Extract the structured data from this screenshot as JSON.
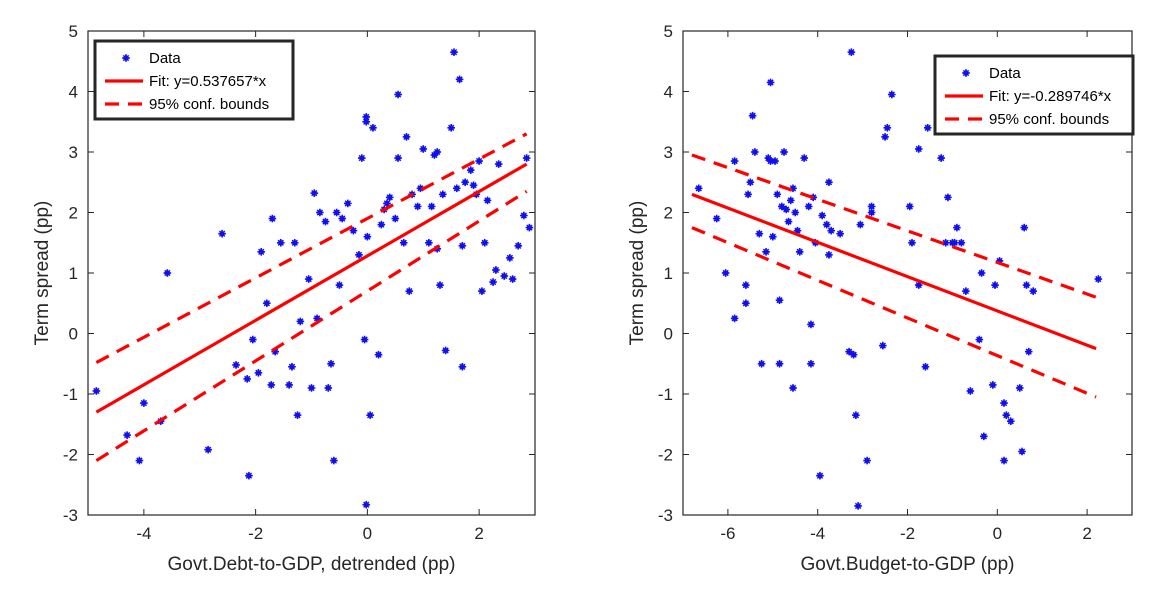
{
  "chart_data": [
    {
      "type": "scatter",
      "xlabel": "Govt.Debt-to-GDP, detrended (pp)",
      "ylabel": "Term spread (pp)",
      "xlim": [
        -5,
        3
      ],
      "ylim": [
        -3,
        5
      ],
      "xticks": [
        -4,
        -2,
        0,
        2
      ],
      "xtick_labels": [
        "-4",
        "-2",
        "0",
        "2"
      ],
      "yticks": [
        -3,
        -2,
        -1,
        0,
        1,
        2,
        3,
        4,
        5
      ],
      "ytick_labels": [
        "-3",
        "-2",
        "-1",
        "0",
        "1",
        "2",
        "3",
        "4",
        "5"
      ],
      "grid": false,
      "legend_position": "top-left",
      "legend": [
        "Data",
        "Fit: y=0.537657*x",
        "95% conf. bounds"
      ],
      "points": [
        [
          -4.85,
          -0.95
        ],
        [
          -4.3,
          -1.68
        ],
        [
          -4.08,
          -2.1
        ],
        [
          -4.0,
          -1.15
        ],
        [
          -3.7,
          -1.45
        ],
        [
          -3.58,
          1.0
        ],
        [
          -2.85,
          -1.92
        ],
        [
          -2.6,
          1.65
        ],
        [
          -2.35,
          -0.52
        ],
        [
          -2.15,
          -0.75
        ],
        [
          -2.12,
          -2.35
        ],
        [
          -2.05,
          -0.1
        ],
        [
          -1.95,
          -0.65
        ],
        [
          -1.9,
          1.35
        ],
        [
          -1.8,
          0.5
        ],
        [
          -1.72,
          -0.85
        ],
        [
          -1.7,
          1.9
        ],
        [
          -1.65,
          -0.3
        ],
        [
          -1.55,
          1.5
        ],
        [
          -1.4,
          -0.85
        ],
        [
          -1.35,
          -0.55
        ],
        [
          -1.3,
          1.5
        ],
        [
          -1.25,
          -1.35
        ],
        [
          -1.2,
          0.2
        ],
        [
          -1.05,
          0.9
        ],
        [
          -1.0,
          -0.9
        ],
        [
          -0.95,
          2.32
        ],
        [
          -0.9,
          0.25
        ],
        [
          -0.85,
          2.0
        ],
        [
          -0.75,
          1.85
        ],
        [
          -0.7,
          -0.9
        ],
        [
          -0.65,
          -0.5
        ],
        [
          -0.6,
          -2.1
        ],
        [
          -0.55,
          2.0
        ],
        [
          -0.5,
          0.8
        ],
        [
          -0.45,
          1.9
        ],
        [
          -0.35,
          2.15
        ],
        [
          -0.25,
          1.7
        ],
        [
          -0.15,
          1.3
        ],
        [
          -0.1,
          2.9
        ],
        [
          -0.05,
          -0.1
        ],
        [
          -0.02,
          -2.83
        ],
        [
          -0.02,
          3.5
        ],
        [
          -0.02,
          3.58
        ],
        [
          0.0,
          1.6
        ],
        [
          0.05,
          -1.35
        ],
        [
          0.1,
          3.4
        ],
        [
          0.2,
          -0.35
        ],
        [
          0.25,
          1.8
        ],
        [
          0.3,
          2.05
        ],
        [
          0.35,
          2.15
        ],
        [
          0.4,
          2.25
        ],
        [
          0.5,
          1.9
        ],
        [
          0.55,
          2.9
        ],
        [
          0.55,
          3.95
        ],
        [
          0.65,
          1.5
        ],
        [
          0.7,
          3.25
        ],
        [
          0.75,
          0.7
        ],
        [
          0.8,
          2.3
        ],
        [
          0.9,
          2.1
        ],
        [
          0.95,
          2.4
        ],
        [
          1.0,
          3.05
        ],
        [
          1.1,
          1.5
        ],
        [
          1.15,
          2.1
        ],
        [
          1.2,
          2.95
        ],
        [
          1.25,
          3.0
        ],
        [
          1.25,
          1.4
        ],
        [
          1.3,
          0.8
        ],
        [
          1.35,
          2.3
        ],
        [
          1.4,
          -0.28
        ],
        [
          1.5,
          3.4
        ],
        [
          1.55,
          4.65
        ],
        [
          1.6,
          2.4
        ],
        [
          1.65,
          4.2
        ],
        [
          1.7,
          1.45
        ],
        [
          1.7,
          -0.55
        ],
        [
          1.75,
          2.5
        ],
        [
          1.85,
          2.7
        ],
        [
          1.9,
          2.45
        ],
        [
          1.95,
          2.3
        ],
        [
          2.0,
          2.85
        ],
        [
          2.05,
          0.7
        ],
        [
          2.1,
          1.5
        ],
        [
          2.15,
          2.2
        ],
        [
          2.25,
          0.85
        ],
        [
          2.3,
          1.05
        ],
        [
          2.35,
          2.8
        ],
        [
          2.45,
          0.95
        ],
        [
          2.55,
          1.25
        ],
        [
          2.6,
          0.9
        ],
        [
          2.7,
          1.45
        ],
        [
          2.8,
          1.95
        ],
        [
          2.85,
          2.9
        ],
        [
          2.9,
          1.75
        ]
      ],
      "fit": {
        "x": [
          -4.85,
          2.85
        ],
        "y": [
          -1.3,
          2.8
        ]
      },
      "conf_upper": {
        "x": [
          -4.85,
          2.85
        ],
        "y": [
          -0.48,
          3.3
        ]
      },
      "conf_lower": {
        "x": [
          -4.85,
          2.85
        ],
        "y": [
          -2.1,
          2.35
        ]
      }
    },
    {
      "type": "scatter",
      "xlabel": "Govt.Budget-to-GDP (pp)",
      "ylabel": "Term spread (pp)",
      "xlim": [
        -7,
        3
      ],
      "ylim": [
        -3,
        5
      ],
      "xticks": [
        -6,
        -4,
        -2,
        0,
        2
      ],
      "xtick_labels": [
        "-6",
        "-4",
        "-2",
        "0",
        "2"
      ],
      "yticks": [
        -3,
        -2,
        -1,
        0,
        1,
        2,
        3,
        4,
        5
      ],
      "ytick_labels": [
        "-3",
        "-2",
        "-1",
        "0",
        "1",
        "2",
        "3",
        "4",
        "5"
      ],
      "grid": false,
      "legend_position": "top-right",
      "legend": [
        "Data",
        "Fit: y=-0.289746*x",
        "95% conf. bounds"
      ],
      "points": [
        [
          -6.65,
          2.4
        ],
        [
          -6.25,
          1.9
        ],
        [
          -6.05,
          1.0
        ],
        [
          -5.85,
          0.25
        ],
        [
          -5.85,
          2.85
        ],
        [
          -5.6,
          0.8
        ],
        [
          -5.6,
          0.5
        ],
        [
          -5.55,
          2.3
        ],
        [
          -5.5,
          2.5
        ],
        [
          -5.45,
          3.6
        ],
        [
          -5.4,
          3.0
        ],
        [
          -5.3,
          1.65
        ],
        [
          -5.25,
          -0.5
        ],
        [
          -5.15,
          1.35
        ],
        [
          -5.1,
          2.9
        ],
        [
          -5.05,
          4.15
        ],
        [
          -5.05,
          2.85
        ],
        [
          -5.0,
          1.6
        ],
        [
          -4.95,
          2.85
        ],
        [
          -4.9,
          2.3
        ],
        [
          -4.85,
          -0.5
        ],
        [
          -4.85,
          0.55
        ],
        [
          -4.8,
          2.1
        ],
        [
          -4.75,
          3.0
        ],
        [
          -4.7,
          2.05
        ],
        [
          -4.65,
          1.85
        ],
        [
          -4.6,
          2.2
        ],
        [
          -4.55,
          -0.9
        ],
        [
          -4.55,
          2.4
        ],
        [
          -4.5,
          2.0
        ],
        [
          -4.45,
          1.7
        ],
        [
          -4.4,
          1.35
        ],
        [
          -4.3,
          2.9
        ],
        [
          -4.2,
          2.1
        ],
        [
          -4.15,
          -0.5
        ],
        [
          -4.15,
          0.15
        ],
        [
          -4.1,
          2.25
        ],
        [
          -4.05,
          1.5
        ],
        [
          -3.95,
          -2.35
        ],
        [
          -3.9,
          1.95
        ],
        [
          -3.8,
          1.8
        ],
        [
          -3.75,
          1.3
        ],
        [
          -3.75,
          2.5
        ],
        [
          -3.7,
          1.7
        ],
        [
          -3.5,
          1.65
        ],
        [
          -3.3,
          -0.3
        ],
        [
          -3.25,
          4.65
        ],
        [
          -3.2,
          -0.35
        ],
        [
          -3.15,
          -1.35
        ],
        [
          -3.1,
          -2.85
        ],
        [
          -3.05,
          1.8
        ],
        [
          -2.9,
          -2.1
        ],
        [
          -2.8,
          2.1
        ],
        [
          -2.8,
          2.0
        ],
        [
          -2.55,
          -0.2
        ],
        [
          -2.5,
          3.25
        ],
        [
          -2.45,
          3.4
        ],
        [
          -2.35,
          3.95
        ],
        [
          -1.95,
          2.1
        ],
        [
          -1.9,
          1.5
        ],
        [
          -1.75,
          3.05
        ],
        [
          -1.75,
          0.8
        ],
        [
          -1.6,
          -0.55
        ],
        [
          -1.55,
          3.4
        ],
        [
          -1.25,
          2.9
        ],
        [
          -1.15,
          1.5
        ],
        [
          -1.1,
          2.25
        ],
        [
          -1.0,
          1.5
        ],
        [
          -0.95,
          1.5
        ],
        [
          -0.9,
          1.75
        ],
        [
          -0.8,
          1.5
        ],
        [
          -0.7,
          0.7
        ],
        [
          -0.6,
          -0.95
        ],
        [
          -0.4,
          -0.1
        ],
        [
          -0.35,
          1.0
        ],
        [
          -0.3,
          -1.7
        ],
        [
          -0.1,
          -0.85
        ],
        [
          -0.05,
          0.8
        ],
        [
          0.05,
          1.2
        ],
        [
          0.15,
          -1.15
        ],
        [
          0.15,
          -2.1
        ],
        [
          0.2,
          -1.35
        ],
        [
          0.3,
          -1.45
        ],
        [
          0.5,
          -0.9
        ],
        [
          0.55,
          -1.95
        ],
        [
          0.6,
          1.75
        ],
        [
          0.65,
          0.8
        ],
        [
          0.7,
          -0.3
        ],
        [
          0.8,
          0.7
        ],
        [
          2.25,
          0.9
        ]
      ],
      "fit": {
        "x": [
          -6.8,
          2.2
        ],
        "y": [
          2.3,
          -0.25
        ]
      },
      "conf_upper": {
        "x": [
          -6.8,
          2.2
        ],
        "y": [
          2.95,
          0.6
        ]
      },
      "conf_lower": {
        "x": [
          -6.8,
          2.2
        ],
        "y": [
          1.75,
          -1.05
        ]
      }
    }
  ],
  "colors": {
    "data": "#1010f0",
    "fit": "#ff0000",
    "axes": "#262626"
  }
}
